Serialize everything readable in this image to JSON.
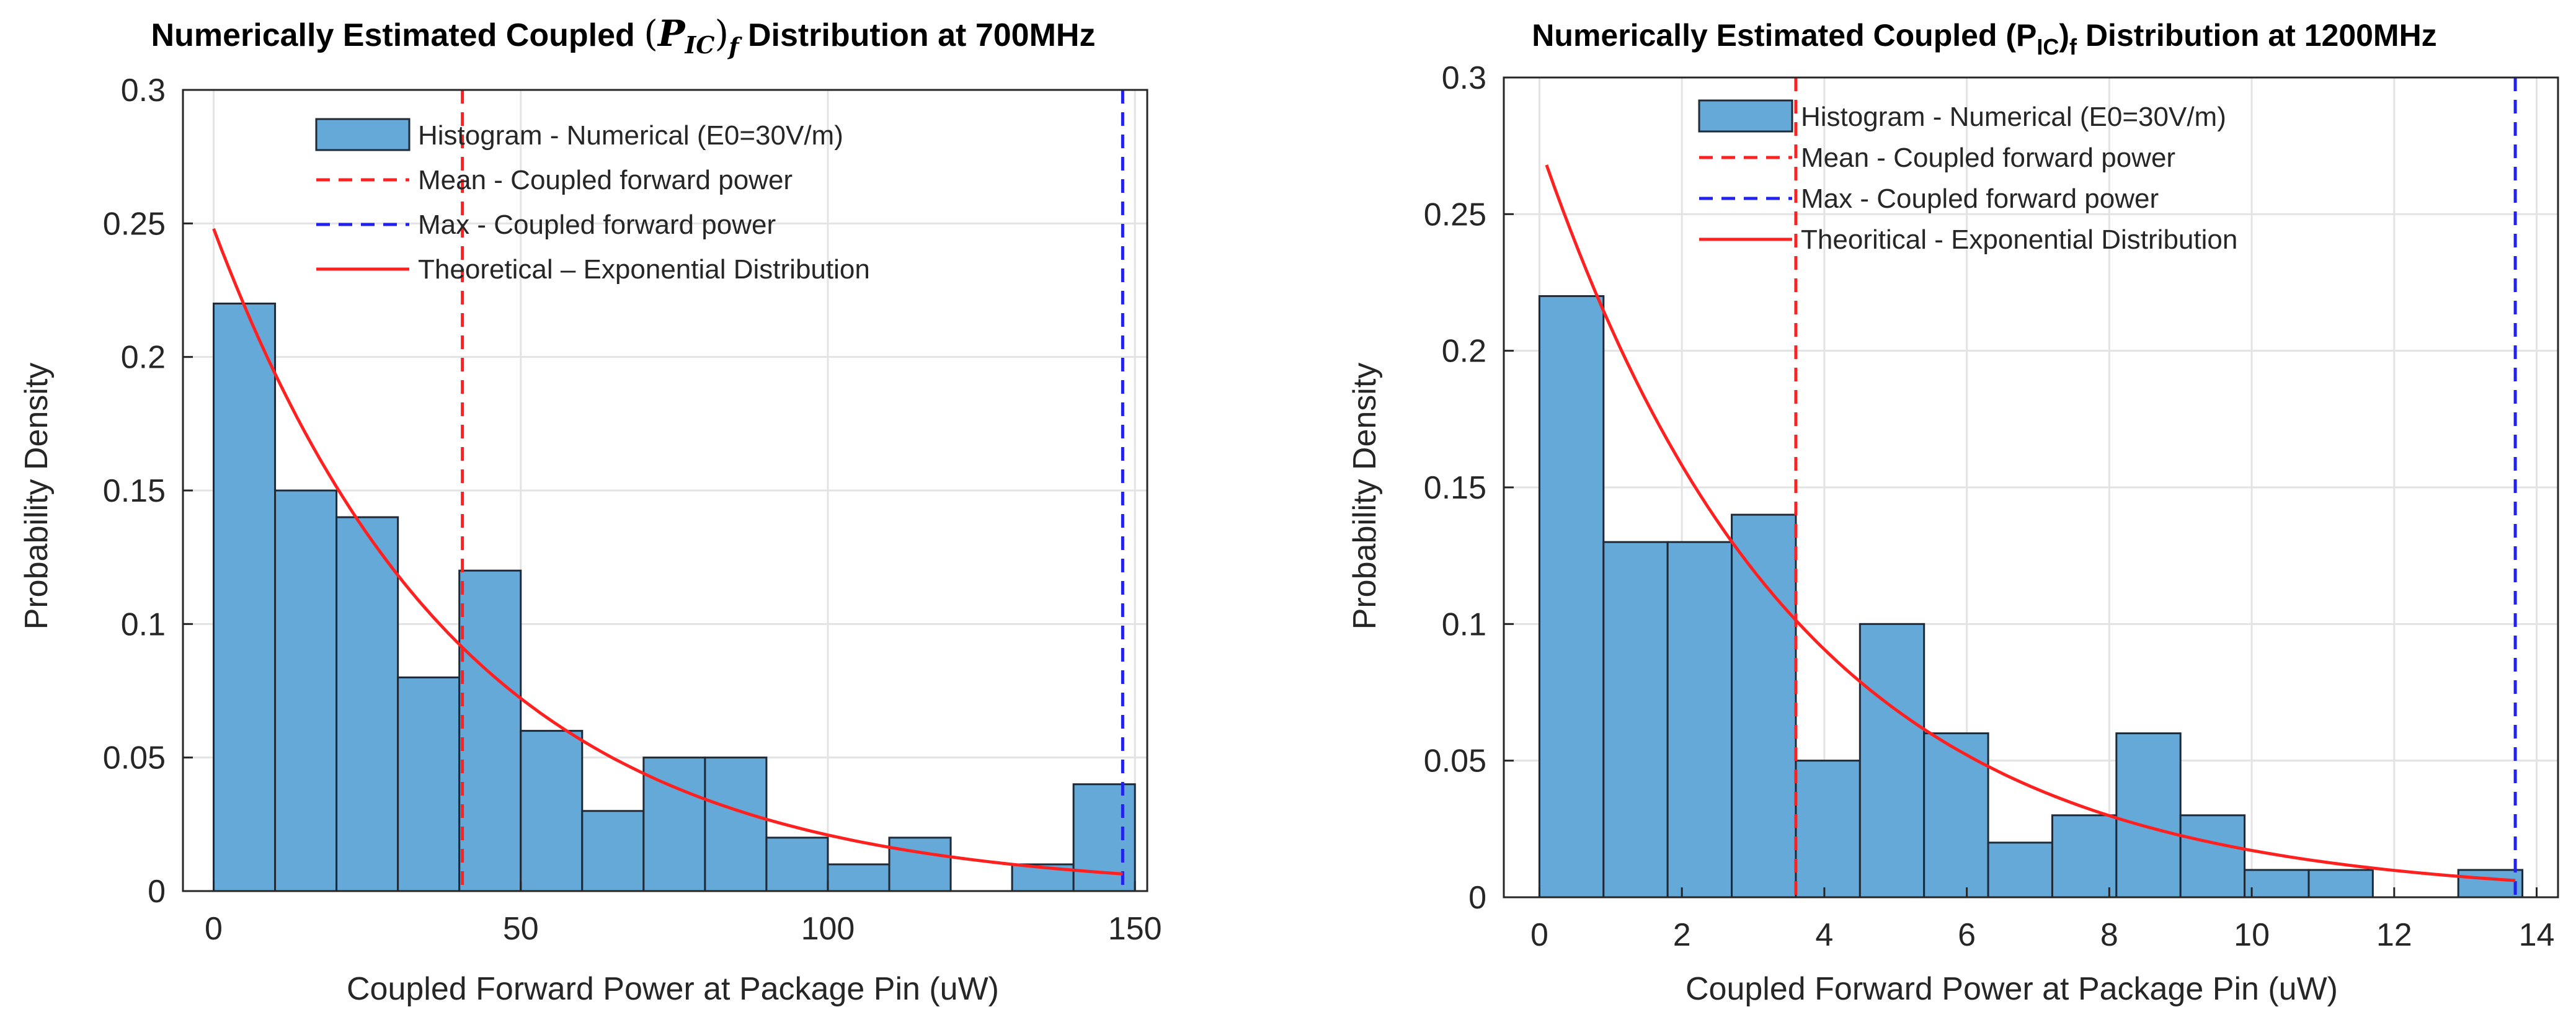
{
  "chart_data": [
    {
      "type": "bar",
      "title_prefix": "Numerically Estimated Coupled ",
      "title_symbol": "P",
      "title_subscript": "IC",
      "title_outer_subscript": "f",
      "title_suffix": " Distribution at 700MHz",
      "xlabel": "Coupled Forward Power at Package Pin (uW)",
      "ylabel": "Probability Density",
      "xlim": [
        -5,
        152
      ],
      "ylim": [
        0,
        0.3
      ],
      "xticks": [
        0,
        50,
        100,
        150
      ],
      "yticks": [
        0,
        0.05,
        0.1,
        0.15,
        0.2,
        0.25,
        0.3
      ],
      "ytick_labels": [
        "0",
        "0.05",
        "0.1",
        "0.15",
        "0.2",
        "0.25",
        "0.3"
      ],
      "bins": [
        {
          "start": 0,
          "end": 10,
          "value": 0.22
        },
        {
          "start": 10,
          "end": 20,
          "value": 0.15
        },
        {
          "start": 20,
          "end": 30,
          "value": 0.14
        },
        {
          "start": 30,
          "end": 40,
          "value": 0.08
        },
        {
          "start": 40,
          "end": 50,
          "value": 0.12
        },
        {
          "start": 50,
          "end": 60,
          "value": 0.06
        },
        {
          "start": 60,
          "end": 70,
          "value": 0.03
        },
        {
          "start": 70,
          "end": 80,
          "value": 0.05
        },
        {
          "start": 80,
          "end": 90,
          "value": 0.05
        },
        {
          "start": 90,
          "end": 100,
          "value": 0.02
        },
        {
          "start": 100,
          "end": 110,
          "value": 0.01
        },
        {
          "start": 110,
          "end": 120,
          "value": 0.02
        },
        {
          "start": 130,
          "end": 140,
          "value": 0.01
        },
        {
          "start": 140,
          "end": 150,
          "value": 0.04
        }
      ],
      "mean": 40.5,
      "max": 148,
      "theory": {
        "x0": 0,
        "x1": 148,
        "lambda_inv": 40.5,
        "peak": 0.248
      },
      "legend": [
        "Histogram - Numerical (E0=30V/m)",
        "Mean - Coupled forward power",
        "Max - Coupled forward power",
        "Theoretical – Exponential Distribution"
      ],
      "legend_position": "top-right",
      "colors": {
        "bar": "#64a9d8",
        "bar_edge": "#1f2a36",
        "mean": "#ff2020",
        "max": "#2222ee",
        "theory": "#ff2020",
        "grid": "#e3e3e3"
      }
    },
    {
      "type": "bar",
      "title_prefix": "Numerically Estimated Coupled (P",
      "title_subscript": "IC",
      "title_middle": ")",
      "title_outer_subscript": "f",
      "title_suffix": " Distribution at 1200MHz",
      "xlabel": "Coupled Forward Power at Package Pin (uW)",
      "ylabel": "Probability Density",
      "xlim": [
        -0.5,
        14.3
      ],
      "ylim": [
        0,
        0.3
      ],
      "xticks": [
        0,
        2,
        4,
        6,
        8,
        10,
        12,
        14
      ],
      "yticks": [
        0,
        0.05,
        0.1,
        0.15,
        0.2,
        0.25,
        0.3
      ],
      "ytick_labels": [
        "0",
        "0.05",
        "0.1",
        "0.15",
        "0.2",
        "0.25",
        "0.3"
      ],
      "bins": [
        {
          "start": 0,
          "end": 0.9,
          "value": 0.22
        },
        {
          "start": 0.9,
          "end": 1.8,
          "value": 0.13
        },
        {
          "start": 1.8,
          "end": 2.7,
          "value": 0.13
        },
        {
          "start": 2.7,
          "end": 3.6,
          "value": 0.14
        },
        {
          "start": 3.6,
          "end": 4.5,
          "value": 0.05
        },
        {
          "start": 4.5,
          "end": 5.4,
          "value": 0.1
        },
        {
          "start": 5.4,
          "end": 6.3,
          "value": 0.06
        },
        {
          "start": 6.3,
          "end": 7.2,
          "value": 0.02
        },
        {
          "start": 7.2,
          "end": 8.1,
          "value": 0.03
        },
        {
          "start": 8.1,
          "end": 9.0,
          "value": 0.06
        },
        {
          "start": 9.0,
          "end": 9.9,
          "value": 0.03
        },
        {
          "start": 9.9,
          "end": 10.8,
          "value": 0.01
        },
        {
          "start": 10.8,
          "end": 11.7,
          "value": 0.01
        },
        {
          "start": 12.9,
          "end": 13.8,
          "value": 0.01
        }
      ],
      "mean": 3.6,
      "max": 13.7,
      "theory": {
        "x0": 0.1,
        "x1": 13.7,
        "lambda_inv": 3.6,
        "peak": 0.268
      },
      "legend": [
        "Histogram - Numerical (E0=30V/m)",
        "Mean - Coupled forward power",
        "Max - Coupled forward power",
        "Theoritical - Exponential Distribution"
      ],
      "legend_position": "top-center",
      "colors": {
        "bar": "#64a9d8",
        "bar_edge": "#1f2a36",
        "mean": "#ff2020",
        "max": "#2222ee",
        "theory": "#ff2020",
        "grid": "#e3e3e3"
      }
    }
  ]
}
